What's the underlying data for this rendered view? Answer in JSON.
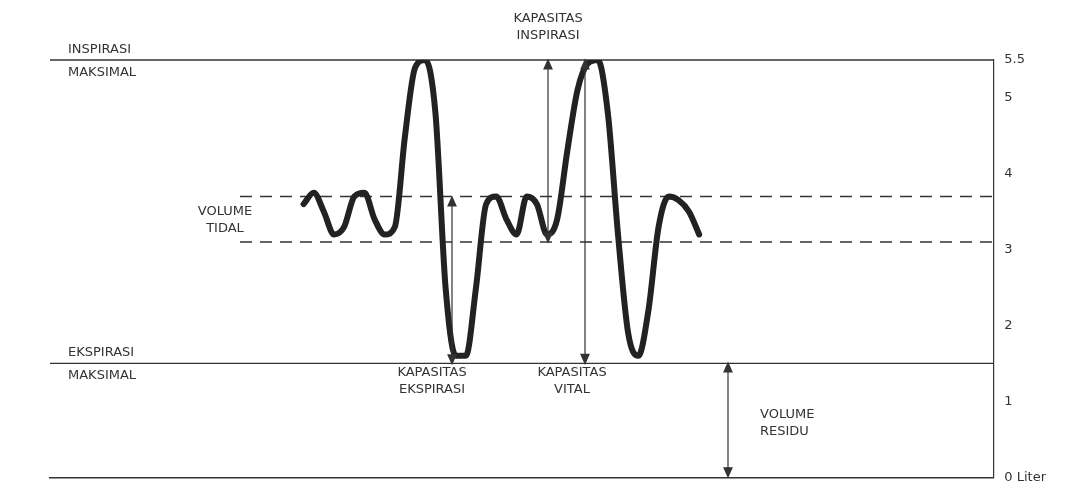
{
  "chart_data": {
    "type": "line",
    "categories": [
      null,
      null,
      null,
      null,
      null,
      null,
      null,
      null,
      null,
      null,
      null,
      null,
      null,
      null,
      null,
      null,
      null,
      null,
      null,
      null,
      null,
      null,
      null,
      null,
      null,
      null,
      null,
      null,
      null,
      null,
      null,
      null,
      null,
      null,
      null,
      null,
      null,
      null,
      null,
      null,
      null,
      null,
      null,
      null,
      null,
      null,
      null,
      null,
      null,
      null,
      null,
      null,
      null,
      null,
      null,
      null,
      null,
      null,
      null,
      null,
      null,
      null,
      null,
      null,
      null,
      null,
      null,
      null,
      null,
      null,
      null,
      null,
      null,
      null,
      null,
      null,
      null,
      null,
      null,
      null,
      null,
      null,
      null,
      null,
      null,
      null,
      null,
      null,
      null,
      null,
      null,
      null,
      null,
      null
    ],
    "series": [
      {
        "color": "#222222",
        "values": [
          null,
          null,
          null,
          null,
          null,
          null,
          null,
          null,
          null,
          null,
          null,
          null,
          null,
          null,
          null,
          null,
          null,
          null,
          null,
          null,
          null,
          null,
          null,
          null,
          null,
          3.6,
          3.75,
          3.5,
          3.2,
          3.3,
          3.7,
          3.75,
          3.4,
          3.2,
          3.3,
          4.5,
          5.4,
          5.5,
          4.8,
          2.5,
          1.6,
          1.6,
          2.5,
          3.6,
          3.7,
          3.4,
          3.2,
          3.7,
          3.6,
          3.2,
          3.4,
          4.3,
          5.1,
          5.45,
          5.5,
          4.8,
          3.2,
          1.9,
          1.6,
          2.2,
          3.3,
          3.7,
          3.65,
          3.5,
          3.2,
          null,
          null,
          null,
          null,
          null,
          null,
          null,
          null,
          null,
          null,
          null,
          null,
          null,
          null,
          null,
          null,
          null,
          null,
          null,
          null,
          null,
          null,
          null,
          null,
          null,
          null,
          null,
          null,
          null
        ]
      }
    ],
    "ylim": [
      0,
      5.5
    ],
    "yticks": [
      {
        "value": 0,
        "label": "0 Liter"
      },
      1,
      2,
      3,
      4,
      5,
      5.5
    ],
    "tick_labels": "y",
    "grid": false,
    "legend": false,
    "marker": "none",
    "ref_lines": [
      {
        "axis": "y",
        "value": 5.5,
        "label": "INSPIRASI MAKSIMAL",
        "color": "#333333",
        "line_style": "solid"
      },
      {
        "axis": "y",
        "value": 1.5,
        "label": "EKSPIRASI MAKSIMAL",
        "color": "#333333",
        "line_style": "solid"
      },
      {
        "axis": "y",
        "value": 3.1,
        "color": "#333333",
        "line_style": "dashed"
      },
      {
        "axis": "y",
        "value": 3.7,
        "color": "#333333",
        "line_style": "dashed"
      }
    ],
    "annotations": [
      "VOLUME TIDAL",
      "KAPASITAS INSPIRASI",
      "KAPASITAS EKSPIRASI",
      "KAPASITAS VITAL",
      "VOLUME RESIDU"
    ]
  }
}
